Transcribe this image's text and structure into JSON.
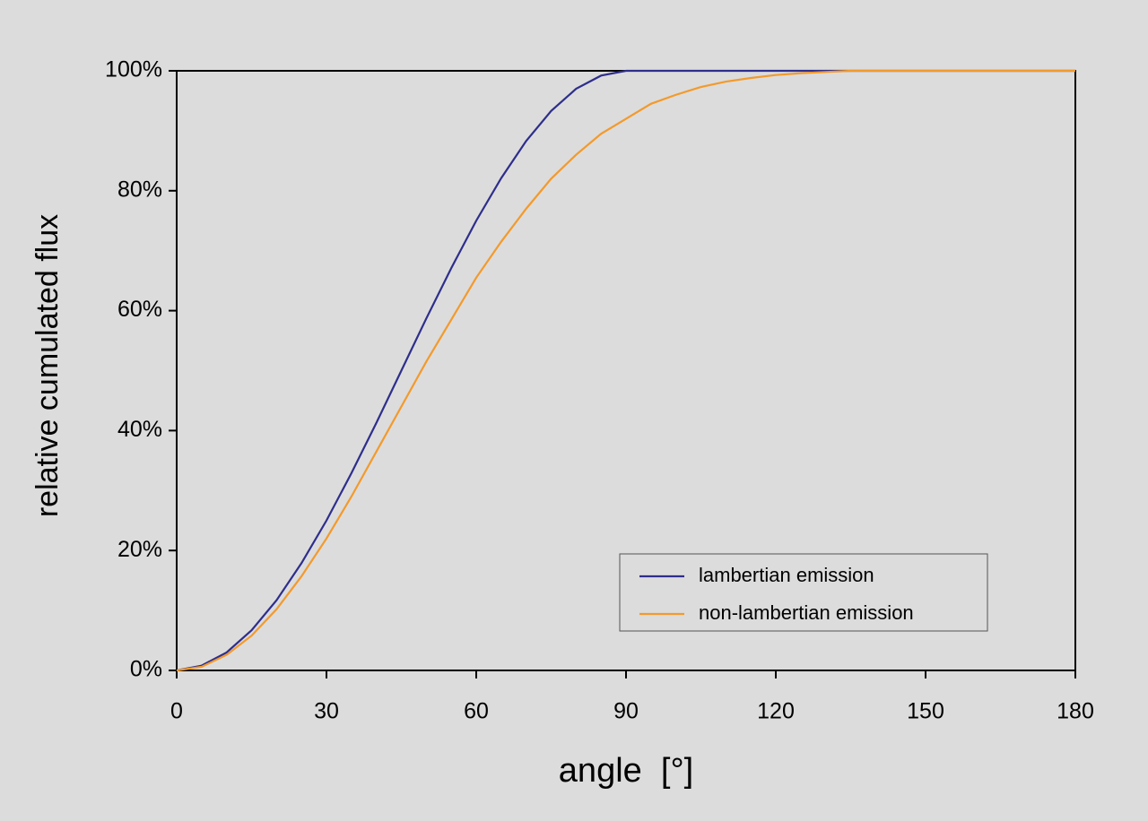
{
  "chart_data": {
    "type": "line",
    "x_label": "angle  [°]",
    "y_label": "relative cumulated flux",
    "x": [
      0,
      5,
      10,
      15,
      20,
      25,
      30,
      35,
      40,
      45,
      50,
      55,
      60,
      65,
      70,
      75,
      80,
      85,
      90,
      95,
      100,
      105,
      110,
      115,
      120,
      125,
      130,
      135,
      140,
      145,
      150,
      155,
      160,
      165,
      170,
      175,
      180
    ],
    "series": [
      {
        "name": "lambertian emission",
        "color": "#2e2e8c",
        "values": [
          0,
          0.8,
          3.0,
          6.7,
          11.7,
          17.9,
          25,
          32.9,
          41.3,
          50,
          58.7,
          67.1,
          75,
          82.1,
          88.3,
          93.3,
          97,
          99.2,
          100,
          100,
          100,
          100,
          100,
          100,
          100,
          100,
          100,
          100,
          100,
          100,
          100,
          100,
          100,
          100,
          100,
          100,
          100
        ]
      },
      {
        "name": "non-lambertian emission",
        "color": "#f39a2b",
        "values": [
          0,
          0.6,
          2.6,
          5.8,
          10.2,
          15.7,
          22,
          29,
          36.5,
          44,
          51.5,
          58.5,
          65.5,
          71.5,
          77,
          82,
          86,
          89.5,
          92,
          94.5,
          96,
          97.3,
          98.2,
          98.8,
          99.3,
          99.6,
          99.8,
          100,
          100,
          100,
          100,
          100,
          100,
          100,
          100,
          100,
          100
        ]
      }
    ],
    "xlim": [
      0,
      180
    ],
    "xticks": [
      0,
      30,
      60,
      90,
      120,
      150,
      180
    ],
    "ylim": [
      0,
      100
    ],
    "yticks": [
      {
        "value": 0,
        "label": "0%"
      },
      {
        "value": 20,
        "label": "20%"
      },
      {
        "value": 40,
        "label": "40%"
      },
      {
        "value": 60,
        "label": "60%"
      },
      {
        "value": 80,
        "label": "80%"
      },
      {
        "value": 100,
        "label": "100%"
      }
    ],
    "grid": false,
    "legend_position": "lower right"
  }
}
